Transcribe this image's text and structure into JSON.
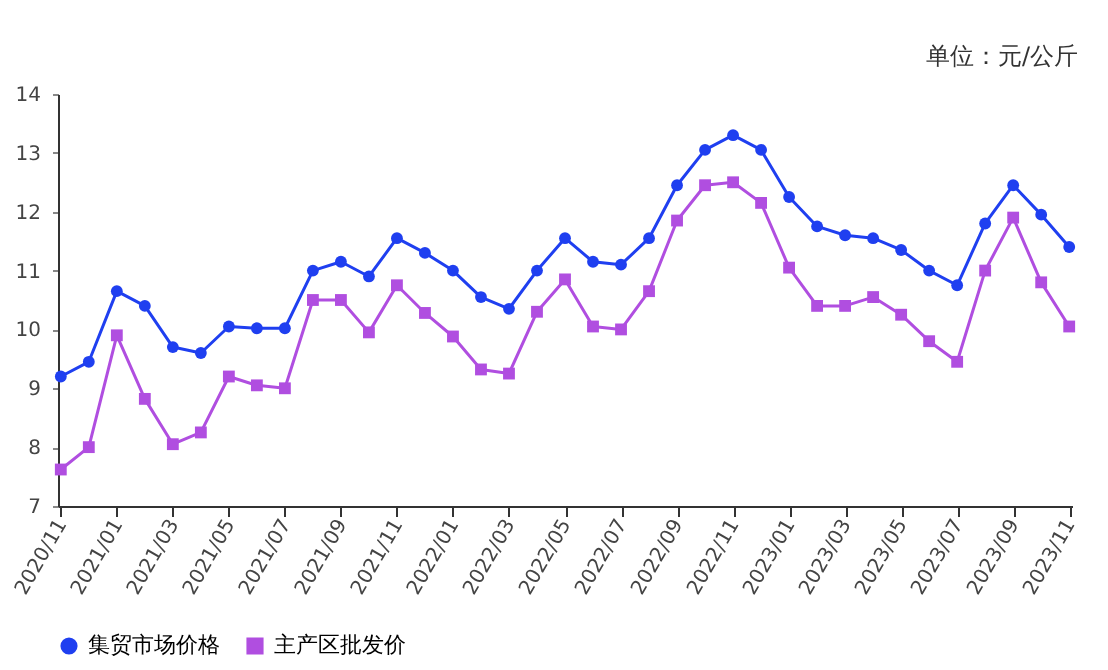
{
  "chart_data": {
    "type": "line",
    "categories": [
      "2020/11",
      null,
      "2021/01",
      null,
      "2021/03",
      null,
      "2021/05",
      null,
      "2021/07",
      null,
      "2021/09",
      null,
      "2021/11",
      null,
      "2022/01",
      null,
      "2022/03",
      null,
      "2022/05",
      null,
      "2022/07",
      null,
      "2022/09",
      null,
      "2022/11",
      null,
      "2023/01",
      null,
      "2023/03",
      null,
      "2023/05",
      null,
      "2023/07",
      null,
      "2023/09",
      null,
      "2023/11"
    ],
    "series": [
      {
        "name": "集贸市场价格",
        "color": "#1f3ff0",
        "marker": "circle",
        "values": [
          9.2,
          9.45,
          10.65,
          10.4,
          9.7,
          9.6,
          10.05,
          10.02,
          10.02,
          11.0,
          11.15,
          10.9,
          11.55,
          11.3,
          11.0,
          10.55,
          10.35,
          11.0,
          11.55,
          11.15,
          11.1,
          11.55,
          12.45,
          13.05,
          13.3,
          13.05,
          12.25,
          11.75,
          11.6,
          11.55,
          11.35,
          11.0,
          10.75,
          11.8,
          12.45,
          11.95,
          11.4
        ]
      },
      {
        "name": "主产区批发价",
        "color": "#b04ee0",
        "marker": "square",
        "values": [
          7.62,
          8.0,
          9.9,
          8.82,
          8.05,
          8.25,
          9.2,
          9.05,
          9.0,
          10.5,
          10.5,
          9.95,
          10.75,
          10.28,
          9.88,
          9.32,
          9.25,
          10.3,
          10.85,
          10.05,
          10.0,
          10.65,
          11.85,
          12.45,
          12.5,
          12.15,
          11.05,
          10.4,
          10.4,
          10.55,
          10.25,
          9.8,
          9.45,
          11.0,
          11.9,
          10.8,
          10.05
        ]
      }
    ],
    "ylim": [
      7,
      14
    ],
    "yticks": [
      7,
      8,
      9,
      10,
      11,
      12,
      13,
      14
    ],
    "annotations": [
      "单位：元/公斤"
    ],
    "legend": "bottom",
    "grid": false,
    "line_style": "solid"
  }
}
